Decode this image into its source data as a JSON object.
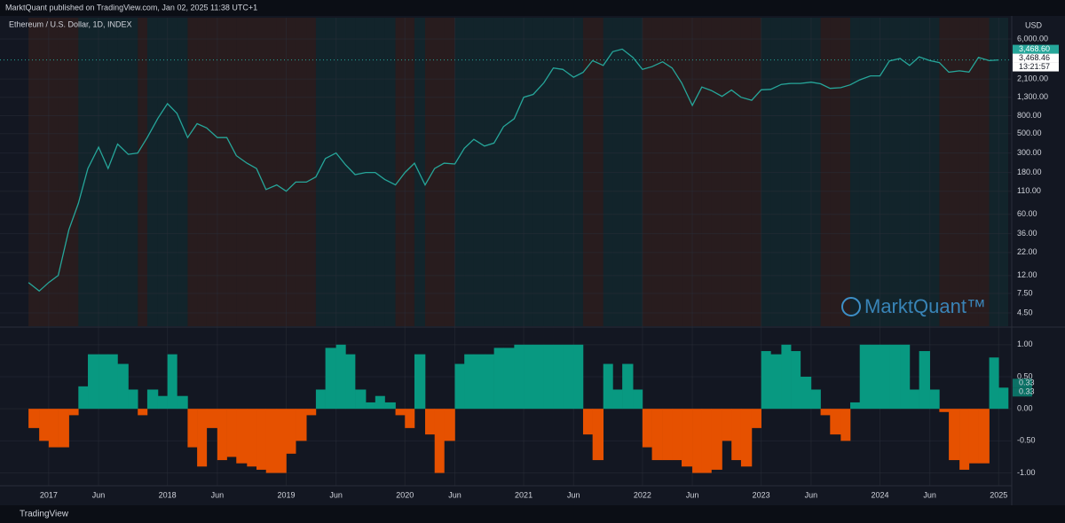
{
  "header": {
    "publisher": "MarktQuant published on TradingView.com, Jan 02, 2025 11:38 UTC+1",
    "symbol": "Ethereum / U.S. Dollar, 1D, INDEX",
    "currency": "USD",
    "watermark": "MarktQuant™",
    "footer": "TradingView"
  },
  "chart_data": [
    {
      "type": "line",
      "log_scale": true,
      "grid": true,
      "price_labels": [
        "3,468.60",
        "3,468.46",
        "13:21:57"
      ],
      "x": [
        2016.83,
        2016.92,
        2017.0,
        2017.08,
        2017.17,
        2017.25,
        2017.33,
        2017.42,
        2017.5,
        2017.58,
        2017.67,
        2017.75,
        2017.83,
        2017.92,
        2018.0,
        2018.08,
        2018.17,
        2018.25,
        2018.33,
        2018.42,
        2018.5,
        2018.58,
        2018.67,
        2018.75,
        2018.83,
        2018.92,
        2019.0,
        2019.08,
        2019.17,
        2019.25,
        2019.33,
        2019.42,
        2019.5,
        2019.58,
        2019.67,
        2019.75,
        2019.83,
        2019.92,
        2020.0,
        2020.08,
        2020.17,
        2020.25,
        2020.33,
        2020.42,
        2020.5,
        2020.58,
        2020.67,
        2020.75,
        2020.83,
        2020.92,
        2021.0,
        2021.08,
        2021.17,
        2021.25,
        2021.33,
        2021.42,
        2021.5,
        2021.58,
        2021.67,
        2021.75,
        2021.83,
        2021.92,
        2022.0,
        2022.08,
        2022.17,
        2022.25,
        2022.33,
        2022.42,
        2022.5,
        2022.58,
        2022.67,
        2022.75,
        2022.83,
        2022.92,
        2023.0,
        2023.08,
        2023.17,
        2023.25,
        2023.33,
        2023.42,
        2023.5,
        2023.58,
        2023.67,
        2023.75,
        2023.83,
        2023.92,
        2024.0,
        2024.08,
        2024.17,
        2024.25,
        2024.33,
        2024.42,
        2024.5,
        2024.58,
        2024.67,
        2024.75,
        2024.83,
        2024.92,
        2025.0
      ],
      "series": [
        {
          "name": "Ethereum / U.S. Dollar",
          "color": "#26a69a",
          "values": [
            10,
            8,
            10,
            12,
            40,
            80,
            200,
            350,
            200,
            380,
            290,
            300,
            450,
            750,
            1100,
            850,
            450,
            650,
            580,
            450,
            450,
            280,
            230,
            200,
            115,
            130,
            110,
            140,
            140,
            160,
            260,
            300,
            220,
            170,
            180,
            180,
            150,
            130,
            180,
            230,
            130,
            200,
            230,
            225,
            340,
            430,
            360,
            390,
            600,
            740,
            1300,
            1400,
            1900,
            2800,
            2700,
            2200,
            2500,
            3400,
            3000,
            4300,
            4600,
            3700,
            2700,
            2900,
            3300,
            2800,
            1900,
            1050,
            1700,
            1550,
            1330,
            1570,
            1300,
            1200,
            1580,
            1600,
            1820,
            1870,
            1870,
            1930,
            1850,
            1640,
            1670,
            1800,
            2050,
            2280,
            2280,
            3380,
            3600,
            3000,
            3760,
            3400,
            3230,
            2510,
            2600,
            2520,
            3700,
            3400,
            3468
          ]
        }
      ],
      "xlim": [
        2016.59,
        2025.11
      ],
      "xticks": [
        {
          "value": 2017,
          "label": "2017"
        },
        {
          "value": 2017.42,
          "label": "Jun"
        },
        {
          "value": 2018,
          "label": "2018"
        },
        {
          "value": 2018.42,
          "label": "Jun"
        },
        {
          "value": 2019,
          "label": "2019"
        },
        {
          "value": 2019.42,
          "label": "Jun"
        },
        {
          "value": 2020,
          "label": "2020"
        },
        {
          "value": 2020.42,
          "label": "Jun"
        },
        {
          "value": 2021,
          "label": "2021"
        },
        {
          "value": 2021.42,
          "label": "Jun"
        },
        {
          "value": 2022,
          "label": "2022"
        },
        {
          "value": 2022.42,
          "label": "Jun"
        },
        {
          "value": 2023,
          "label": "2023"
        },
        {
          "value": 2023.42,
          "label": "Jun"
        },
        {
          "value": 2024,
          "label": "2024"
        },
        {
          "value": 2024.42,
          "label": "Jun"
        },
        {
          "value": 2025,
          "label": "2025"
        }
      ],
      "ylim": [
        3.17,
        10500
      ],
      "yticks": [
        {
          "value": 6000,
          "label": "6,000.00"
        },
        {
          "value": 2100,
          "label": "2,100.00"
        },
        {
          "value": 1300,
          "label": "1,300.00"
        },
        {
          "value": 800,
          "label": "800.00"
        },
        {
          "value": 500,
          "label": "500.00"
        },
        {
          "value": 300,
          "label": "300.00"
        },
        {
          "value": 180,
          "label": "180.00"
        },
        {
          "value": 110,
          "label": "110.00"
        },
        {
          "value": 60,
          "label": "60.00"
        },
        {
          "value": 36,
          "label": "36.00"
        },
        {
          "value": 22,
          "label": "22.00"
        },
        {
          "value": 12,
          "label": "12.00"
        },
        {
          "value": 7.5,
          "label": "7.50"
        },
        {
          "value": 4.5,
          "label": "4.50"
        }
      ]
    },
    {
      "type": "bar",
      "grid": true,
      "positive_color": "#089981",
      "negative_color": "#e65100",
      "last_labels": [
        "0.33",
        "0.33"
      ],
      "values": [
        -0.3,
        -0.5,
        -0.6,
        -0.6,
        -0.1,
        0.35,
        0.85,
        0.85,
        0.85,
        0.7,
        0.3,
        -0.1,
        0.3,
        0.2,
        0.85,
        0.2,
        -0.6,
        -0.9,
        -0.3,
        -0.8,
        -0.75,
        -0.85,
        -0.9,
        -0.95,
        -1.0,
        -1.0,
        -0.7,
        -0.5,
        -0.1,
        0.3,
        0.95,
        1.0,
        0.85,
        0.3,
        0.1,
        0.2,
        0.1,
        -0.1,
        -0.3,
        0.85,
        -0.4,
        -1.0,
        -0.5,
        0.7,
        0.85,
        0.85,
        0.85,
        0.95,
        0.95,
        1.0,
        1.0,
        1.0,
        1.0,
        1.0,
        1.0,
        1.0,
        -0.4,
        -0.8,
        0.7,
        0.3,
        0.7,
        0.3,
        -0.6,
        -0.8,
        -0.8,
        -0.8,
        -0.9,
        -1.0,
        -1.0,
        -0.95,
        -0.5,
        -0.8,
        -0.9,
        -0.3,
        0.9,
        0.85,
        1.0,
        0.9,
        0.5,
        0.3,
        -0.1,
        -0.4,
        -0.5,
        0.1,
        1.0,
        1.0,
        1.0,
        1.0,
        1.0,
        0.3,
        0.9,
        0.3,
        -0.05,
        -0.8,
        -0.95,
        -0.85,
        -0.85,
        0.8,
        0.33
      ],
      "ylim": [
        -1.2,
        1.26
      ],
      "yticks": [
        {
          "value": 1,
          "label": "1.00"
        },
        {
          "value": 0.5,
          "label": "0.50"
        },
        {
          "value": 0,
          "label": "0.00"
        },
        {
          "value": -0.5,
          "label": "-0.50"
        },
        {
          "value": -1,
          "label": "-1.00"
        }
      ]
    }
  ]
}
